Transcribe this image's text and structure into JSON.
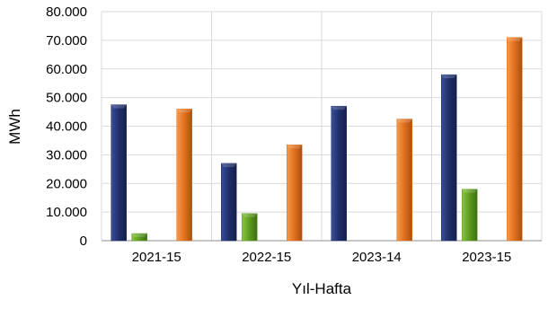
{
  "chart_data": {
    "type": "bar",
    "xlabel": "Yıl-Hafta",
    "ylabel": "MWh",
    "ylim": [
      0,
      80000
    ],
    "yticks": [
      "0",
      "10.000",
      "20.000",
      "30.000",
      "40.000",
      "50.000",
      "60.000",
      "70.000",
      "80.000"
    ],
    "categories": [
      "2021-15",
      "2022-15",
      "2023-14",
      "2023-15"
    ],
    "series": [
      {
        "color": "#1f2f6b",
        "values": [
          47500,
          27000,
          47000,
          58000
        ]
      },
      {
        "color": "#5a9a1e",
        "values": [
          2500,
          9500,
          0,
          18000
        ]
      },
      {
        "color": "#e0701e",
        "values": [
          46000,
          33500,
          42500,
          71000
        ]
      }
    ],
    "legend": "bottom",
    "grid": true
  }
}
